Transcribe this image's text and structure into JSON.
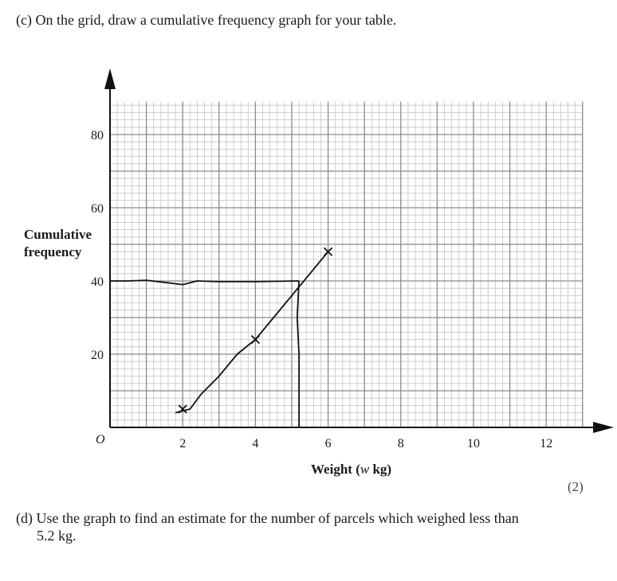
{
  "question_c": "(c) On the grid, draw a cumulative frequency graph for your table.",
  "question_d_line1": "(d) Use the graph to find an estimate for the number of parcels which weighed less than",
  "question_d_line2": "5.2 kg.",
  "marks": "(2)",
  "chart_data": {
    "type": "line",
    "title": "",
    "xlabel_prefix": "Weight (",
    "xlabel_var": "w",
    "xlabel_suffix": " kg)",
    "ylabel_line1": "Cumulative",
    "ylabel_line2": "frequency",
    "origin_label": "O",
    "x_ticks": [
      2,
      4,
      6,
      8,
      10,
      12
    ],
    "y_ticks": [
      20,
      40,
      60,
      80
    ],
    "xlim": [
      0,
      13
    ],
    "ylim": [
      0,
      90
    ],
    "grid": true,
    "series": [
      {
        "points": [
          [
            1.8,
            4
          ],
          [
            2.2,
            5
          ],
          [
            2.5,
            9
          ],
          [
            3.0,
            14
          ],
          [
            3.5,
            20
          ],
          [
            4.0,
            24
          ],
          [
            4.5,
            30
          ],
          [
            5.0,
            36
          ],
          [
            5.5,
            42
          ],
          [
            6.0,
            48
          ]
        ],
        "markers": [
          [
            2.0,
            5
          ],
          [
            4.0,
            24
          ],
          [
            6.0,
            48
          ]
        ]
      }
    ],
    "annotation_lines": [
      {
        "points": [
          [
            0,
            40
          ],
          [
            0.5,
            40
          ],
          [
            1.0,
            40.2
          ],
          [
            1.5,
            39.6
          ],
          [
            2.0,
            39
          ],
          [
            2.4,
            40
          ],
          [
            3,
            39.8
          ],
          [
            4,
            39.8
          ],
          [
            5.2,
            40
          ]
        ]
      },
      {
        "points": [
          [
            5.2,
            40
          ],
          [
            5.15,
            30
          ],
          [
            5.2,
            20
          ],
          [
            5.2,
            0
          ]
        ]
      }
    ]
  }
}
